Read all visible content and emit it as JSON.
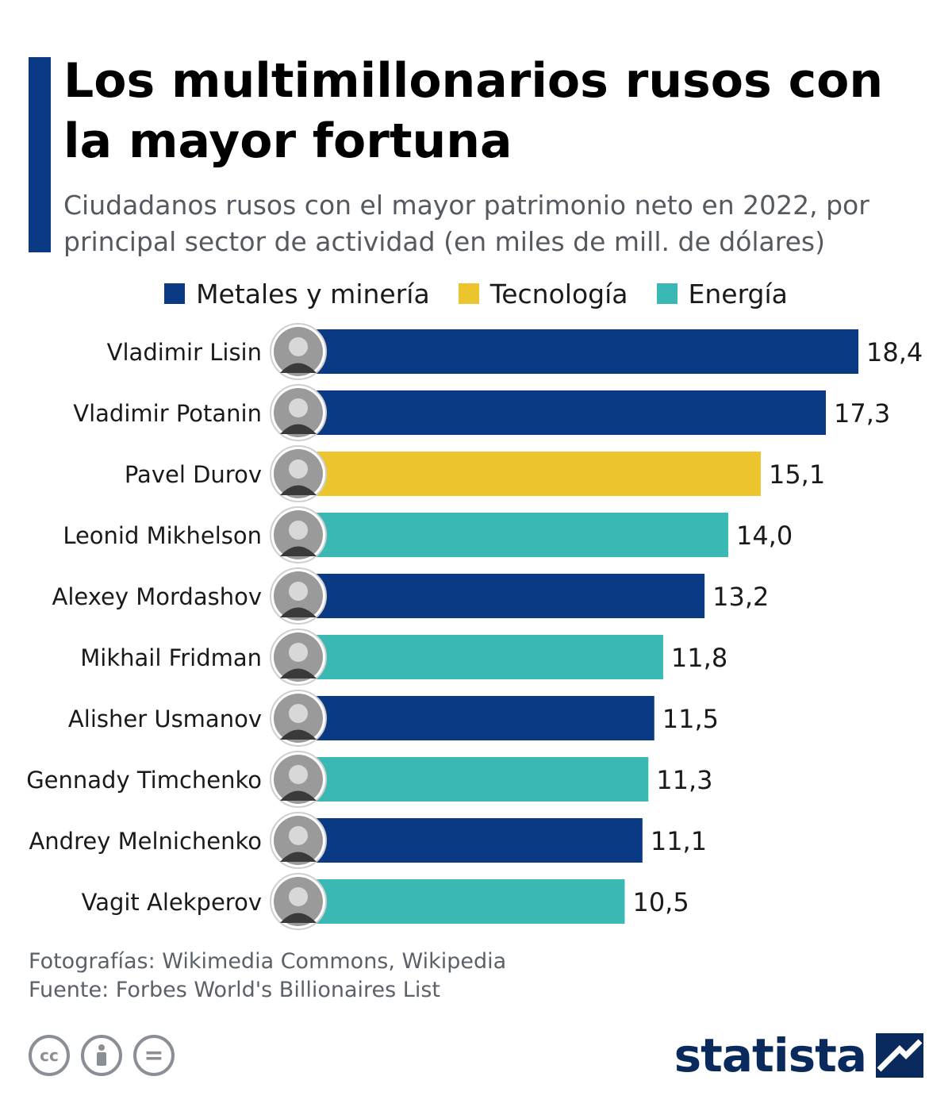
{
  "title": "Los multimillonarios rusos con la mayor fortuna",
  "subtitle": "Ciudadanos rusos con el mayor patrimonio neto en 2022, por principal sector de actividad (en miles de mill. de dólares)",
  "legend": [
    {
      "label": "Metales y minería",
      "color": "#0a3a84"
    },
    {
      "label": "Tecnología",
      "color": "#ecc52e"
    },
    {
      "label": "Energía",
      "color": "#3ab8b3"
    }
  ],
  "chart_data": {
    "type": "bar",
    "orientation": "horizontal",
    "categories": [
      "Vladimir Lisin",
      "Vladimir Potanin",
      "Pavel Durov",
      "Leonid Mikhelson",
      "Alexey Mordashov",
      "Mikhail Fridman",
      "Alisher Usmanov",
      "Gennady Timchenko",
      "Andrey Melnichenko",
      "Vagit Alekperov"
    ],
    "values": [
      18.4,
      17.3,
      15.1,
      14.0,
      13.2,
      11.8,
      11.5,
      11.3,
      11.1,
      10.5
    ],
    "value_labels": [
      "18,4",
      "17,3",
      "15,1",
      "14,0",
      "13,2",
      "11,8",
      "11,5",
      "11,3",
      "11,1",
      "10,5"
    ],
    "sectors": [
      "Metales y minería",
      "Metales y minería",
      "Tecnología",
      "Energía",
      "Metales y minería",
      "Energía",
      "Metales y minería",
      "Energía",
      "Metales y minería",
      "Energía"
    ],
    "legend_placement": "top-center",
    "grid": false,
    "xlim": [
      0,
      18.4
    ]
  },
  "footer": {
    "photos": "Fotografías: Wikimedia Commons, Wikipedia",
    "source": "Fuente: Forbes World's Billionaires List"
  },
  "license_icons": [
    "cc-icon",
    "attribution-icon",
    "no-derivatives-icon"
  ],
  "license_glyphs": [
    "cc",
    "",
    "="
  ],
  "brand": {
    "name": "statista"
  }
}
